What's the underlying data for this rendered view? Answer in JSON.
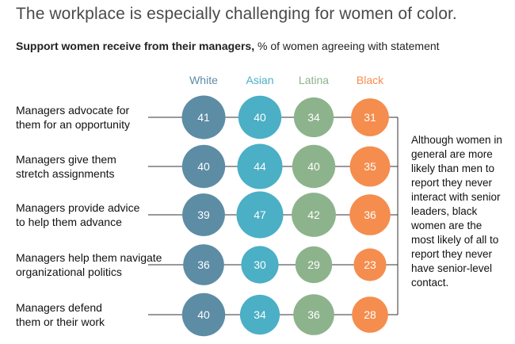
{
  "title": "The workplace is especially challenging for women of color.",
  "subtitle": {
    "bold": "Support women receive from their managers,",
    "rest": " % of women agreeing with statement"
  },
  "annotation": "Although women in general are more likely than men to report they never interact with senior leaders, black women are the most likely of all to report they never have senior-level contact.",
  "colors": {
    "White": "#5d8ca5",
    "Asian": "#4bafc6",
    "Latina": "#8db38c",
    "Black": "#f58d4e"
  },
  "chart_data": {
    "type": "bubble-grid",
    "title": "The workplace is especially challenging for women of color.",
    "subtitle": "Support women receive from their managers, % of women agreeing with statement",
    "columns": [
      "White",
      "Asian",
      "Latina",
      "Black"
    ],
    "rows": [
      "Managers advocate for them for an opportunity",
      "Managers give them stretch assignments",
      "Managers provide advice to help them advance",
      "Managers help them navigate organizational politics",
      "Managers defend them or their work"
    ],
    "row_label_lines": [
      [
        "Managers advocate for",
        "them for an opportunity"
      ],
      [
        "Managers give them",
        "stretch assignments"
      ],
      [
        "Managers provide advice",
        "to help them advance"
      ],
      [
        "Managers help them navigate",
        "organizational politics"
      ],
      [
        "Managers defend",
        "them or their work"
      ]
    ],
    "series": [
      {
        "name": "White",
        "values": [
          41,
          40,
          39,
          36,
          40
        ]
      },
      {
        "name": "Asian",
        "values": [
          40,
          44,
          47,
          30,
          34
        ]
      },
      {
        "name": "Latina",
        "values": [
          34,
          40,
          42,
          29,
          36
        ]
      },
      {
        "name": "Black",
        "values": [
          31,
          35,
          36,
          23,
          28
        ]
      }
    ],
    "unit": "%"
  }
}
